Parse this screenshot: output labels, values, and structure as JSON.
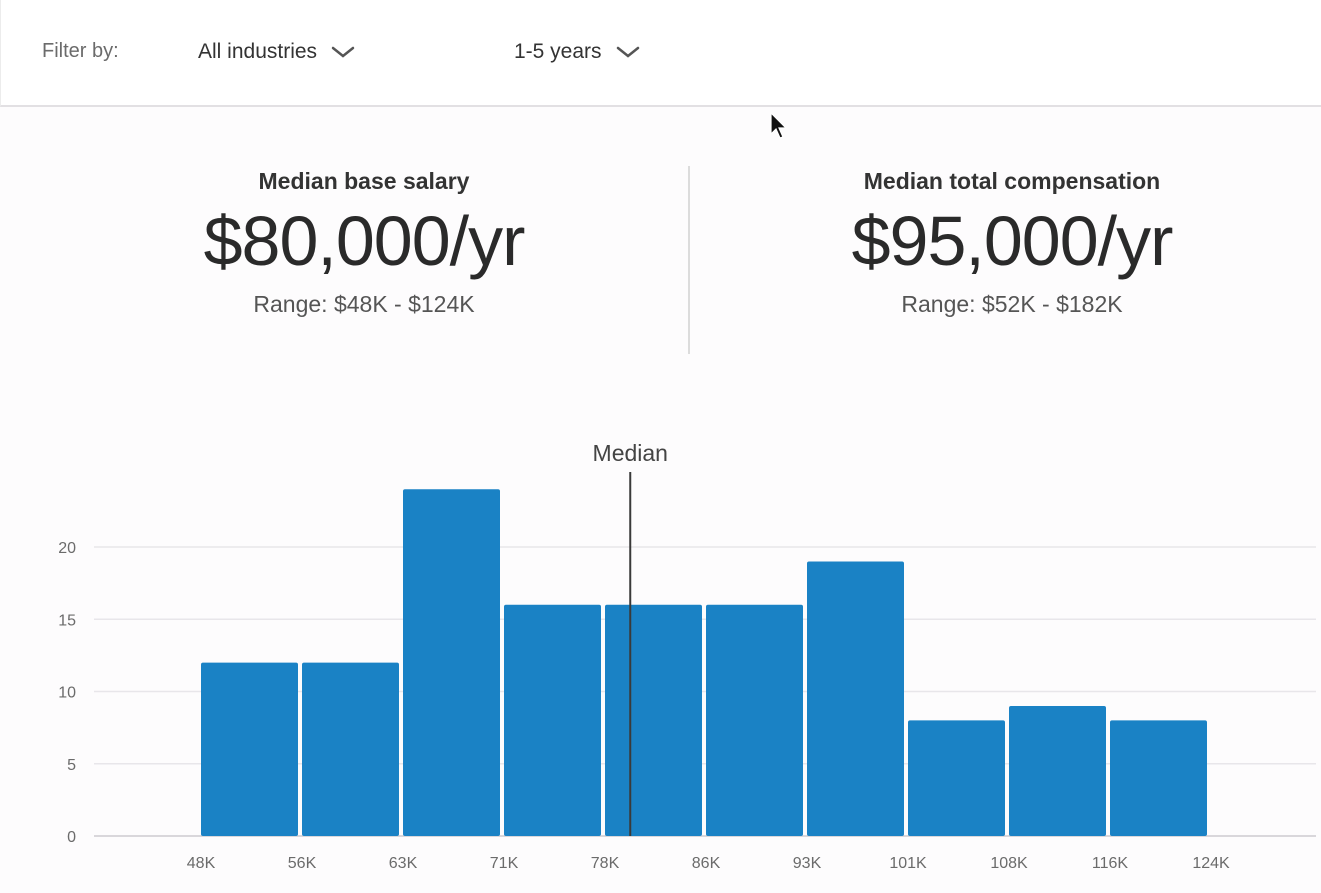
{
  "filters": {
    "label": "Filter by:",
    "industry": {
      "selected": "All industries",
      "icon": "chevron-down-icon"
    },
    "experience": {
      "selected": "1-5 years",
      "icon": "chevron-down-icon"
    }
  },
  "stats": {
    "base": {
      "title": "Median base salary",
      "value": "$80,000/yr",
      "range": "Range: $48K - $124K"
    },
    "total": {
      "title": "Median total compensation",
      "value": "$95,000/yr",
      "range": "Range: $52K - $182K"
    }
  },
  "colors": {
    "bar": "#1a82c5",
    "median_line": "#3a3a3a",
    "grid": "#e8e6ea"
  },
  "chart_data": {
    "type": "bar",
    "title": "",
    "xlabel": "",
    "ylabel": "",
    "bin_edges": [
      "48K",
      "56K",
      "63K",
      "71K",
      "78K",
      "86K",
      "93K",
      "101K",
      "108K",
      "116K",
      "124K"
    ],
    "values": [
      12,
      12,
      24,
      16,
      16,
      16,
      19,
      8,
      9,
      8
    ],
    "yticks": [
      0,
      5,
      10,
      15,
      20
    ],
    "ylim": [
      0,
      25
    ],
    "grid": true,
    "median": {
      "label": "Median",
      "value_k": 80
    }
  }
}
